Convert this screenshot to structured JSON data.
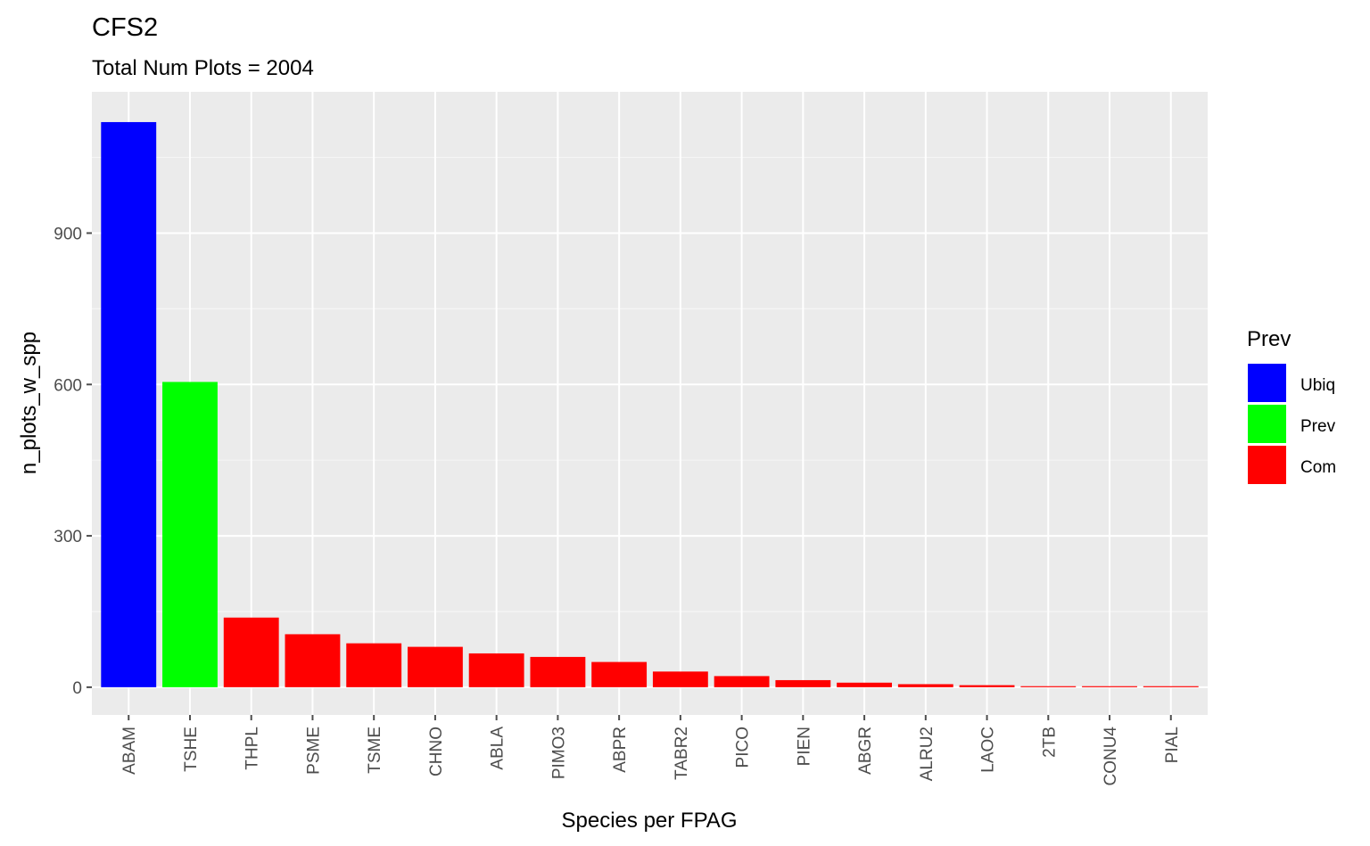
{
  "chart_data": {
    "type": "bar",
    "title": "CFS2",
    "subtitle": "Total Num Plots = 2004",
    "xlabel": "Species per FPAG",
    "ylabel": "n_plots_w_spp",
    "ylim": [
      -55,
      1180
    ],
    "yticks": [
      0,
      300,
      600,
      900
    ],
    "grid": true,
    "categories": [
      "ABAM",
      "TSHE",
      "THPL",
      "PSME",
      "TSME",
      "CHNO",
      "ABLA",
      "PIMO3",
      "ABPR",
      "TABR2",
      "PICO",
      "PIEN",
      "ABGR",
      "ALRU2",
      "LAOC",
      "2TB",
      "CONU4",
      "PIAL"
    ],
    "values": [
      1120,
      605,
      138,
      105,
      87,
      80,
      67,
      60,
      50,
      31,
      22,
      14,
      9,
      6,
      4,
      2,
      2,
      2
    ],
    "groups": [
      "Ubiq",
      "Prev",
      "Com",
      "Com",
      "Com",
      "Com",
      "Com",
      "Com",
      "Com",
      "Com",
      "Com",
      "Com",
      "Com",
      "Com",
      "Com",
      "Com",
      "Com",
      "Com"
    ],
    "legend": {
      "title": "Prev",
      "position": "right",
      "entries": [
        {
          "label": "Ubiq",
          "color": "#0000ff"
        },
        {
          "label": "Prev",
          "color": "#00ff00"
        },
        {
          "label": "Com",
          "color": "#ff0000"
        }
      ]
    },
    "colors": {
      "panel_background": "#ebebeb",
      "grid_major": "#ffffff",
      "grid_minor": "#f5f5f5",
      "tick_color": "#4d4d4d"
    }
  }
}
